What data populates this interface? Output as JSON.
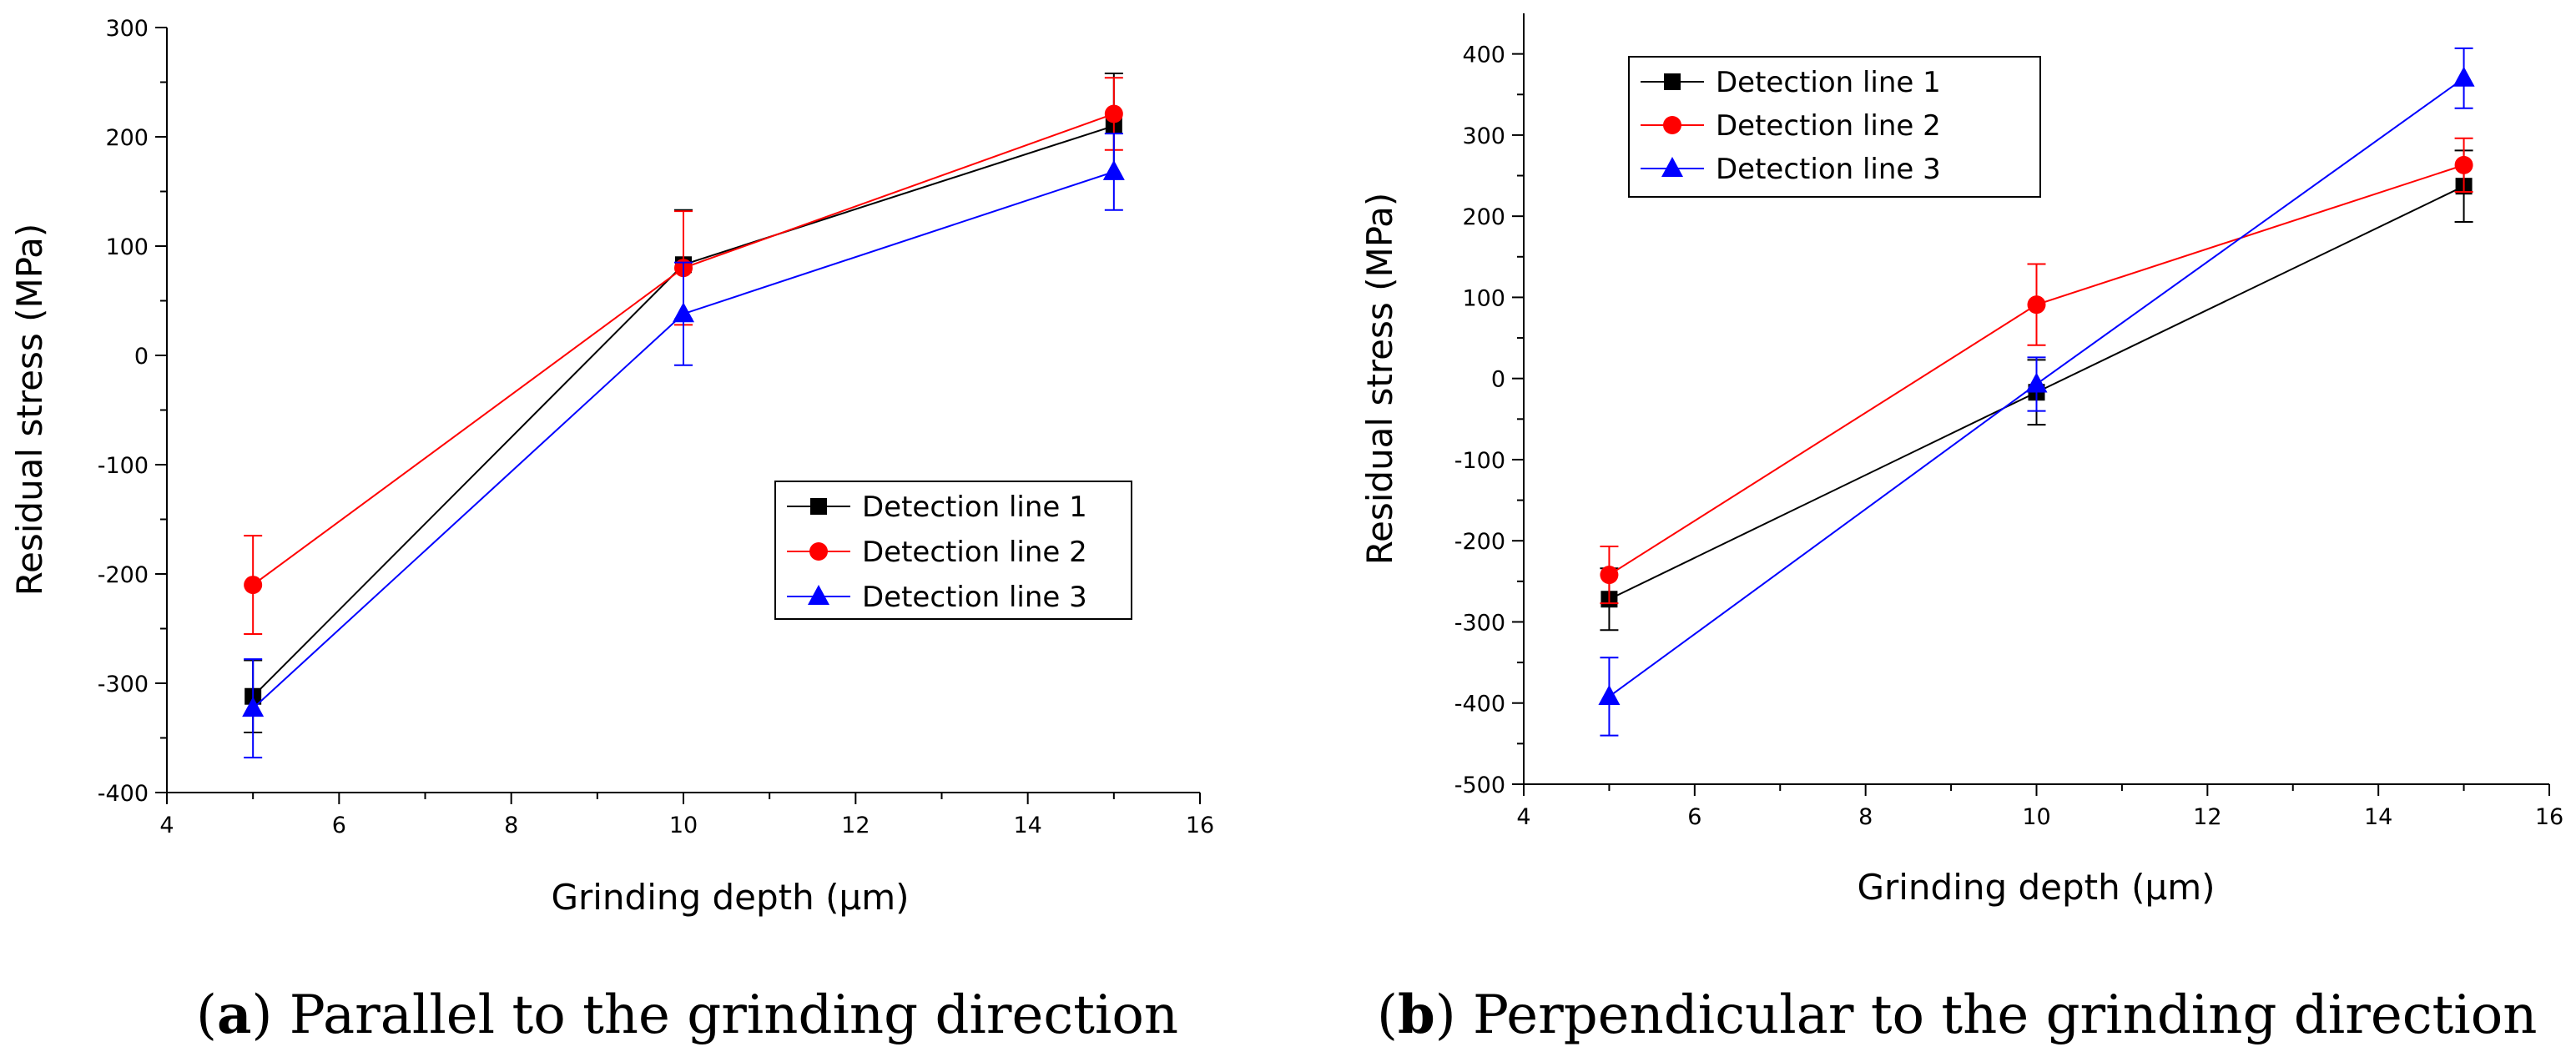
{
  "chart_data": [
    {
      "type": "line",
      "panel_label": "a",
      "caption": "Parallel to the grinding direction",
      "xlabel": "Grinding depth (μm)",
      "ylabel": "Residual stress (MPa)",
      "xlim": [
        4,
        16
      ],
      "ylim": [
        -400,
        300
      ],
      "xticks": [
        4,
        6,
        8,
        10,
        12,
        14,
        16
      ],
      "yticks": [
        -400,
        -300,
        -200,
        -100,
        0,
        100,
        200,
        300
      ],
      "legend_position": "center-right",
      "grid": false,
      "x": [
        5,
        10,
        15
      ],
      "series": [
        {
          "name": "Detection line 1",
          "color": "#000000",
          "marker": "square",
          "values": [
            -312,
            83,
            210
          ],
          "errors": [
            33,
            50,
            48
          ]
        },
        {
          "name": "Detection line 2",
          "color": "#ff0000",
          "marker": "circle",
          "values": [
            -210,
            80,
            221
          ],
          "errors": [
            45,
            52,
            33
          ]
        },
        {
          "name": "Detection line 3",
          "color": "#0000ff",
          "marker": "triangle",
          "values": [
            -323,
            38,
            168
          ],
          "errors": [
            45,
            47,
            35
          ]
        }
      ]
    },
    {
      "type": "line",
      "panel_label": "b",
      "caption": "Perpendicular to the grinding direction",
      "xlabel": "Grinding depth (μm)",
      "ylabel": "Residual stress (MPa)",
      "xlim": [
        4,
        16
      ],
      "ylim": [
        -500,
        450
      ],
      "xticks": [
        4,
        6,
        8,
        10,
        12,
        14,
        16
      ],
      "yticks": [
        -500,
        -400,
        -300,
        -200,
        -100,
        0,
        100,
        200,
        300,
        400
      ],
      "legend_position": "top-left",
      "grid": false,
      "x": [
        5,
        10,
        15
      ],
      "series": [
        {
          "name": "Detection line 1",
          "color": "#000000",
          "marker": "square",
          "values": [
            -272,
            -17,
            237
          ],
          "errors": [
            38,
            40,
            44
          ]
        },
        {
          "name": "Detection line 2",
          "color": "#ff0000",
          "marker": "circle",
          "values": [
            -242,
            91,
            263
          ],
          "errors": [
            35,
            50,
            33
          ]
        },
        {
          "name": "Detection line 3",
          "color": "#0000ff",
          "marker": "triangle",
          "values": [
            -392,
            -7,
            370
          ],
          "errors": [
            48,
            33,
            37
          ]
        }
      ]
    }
  ]
}
